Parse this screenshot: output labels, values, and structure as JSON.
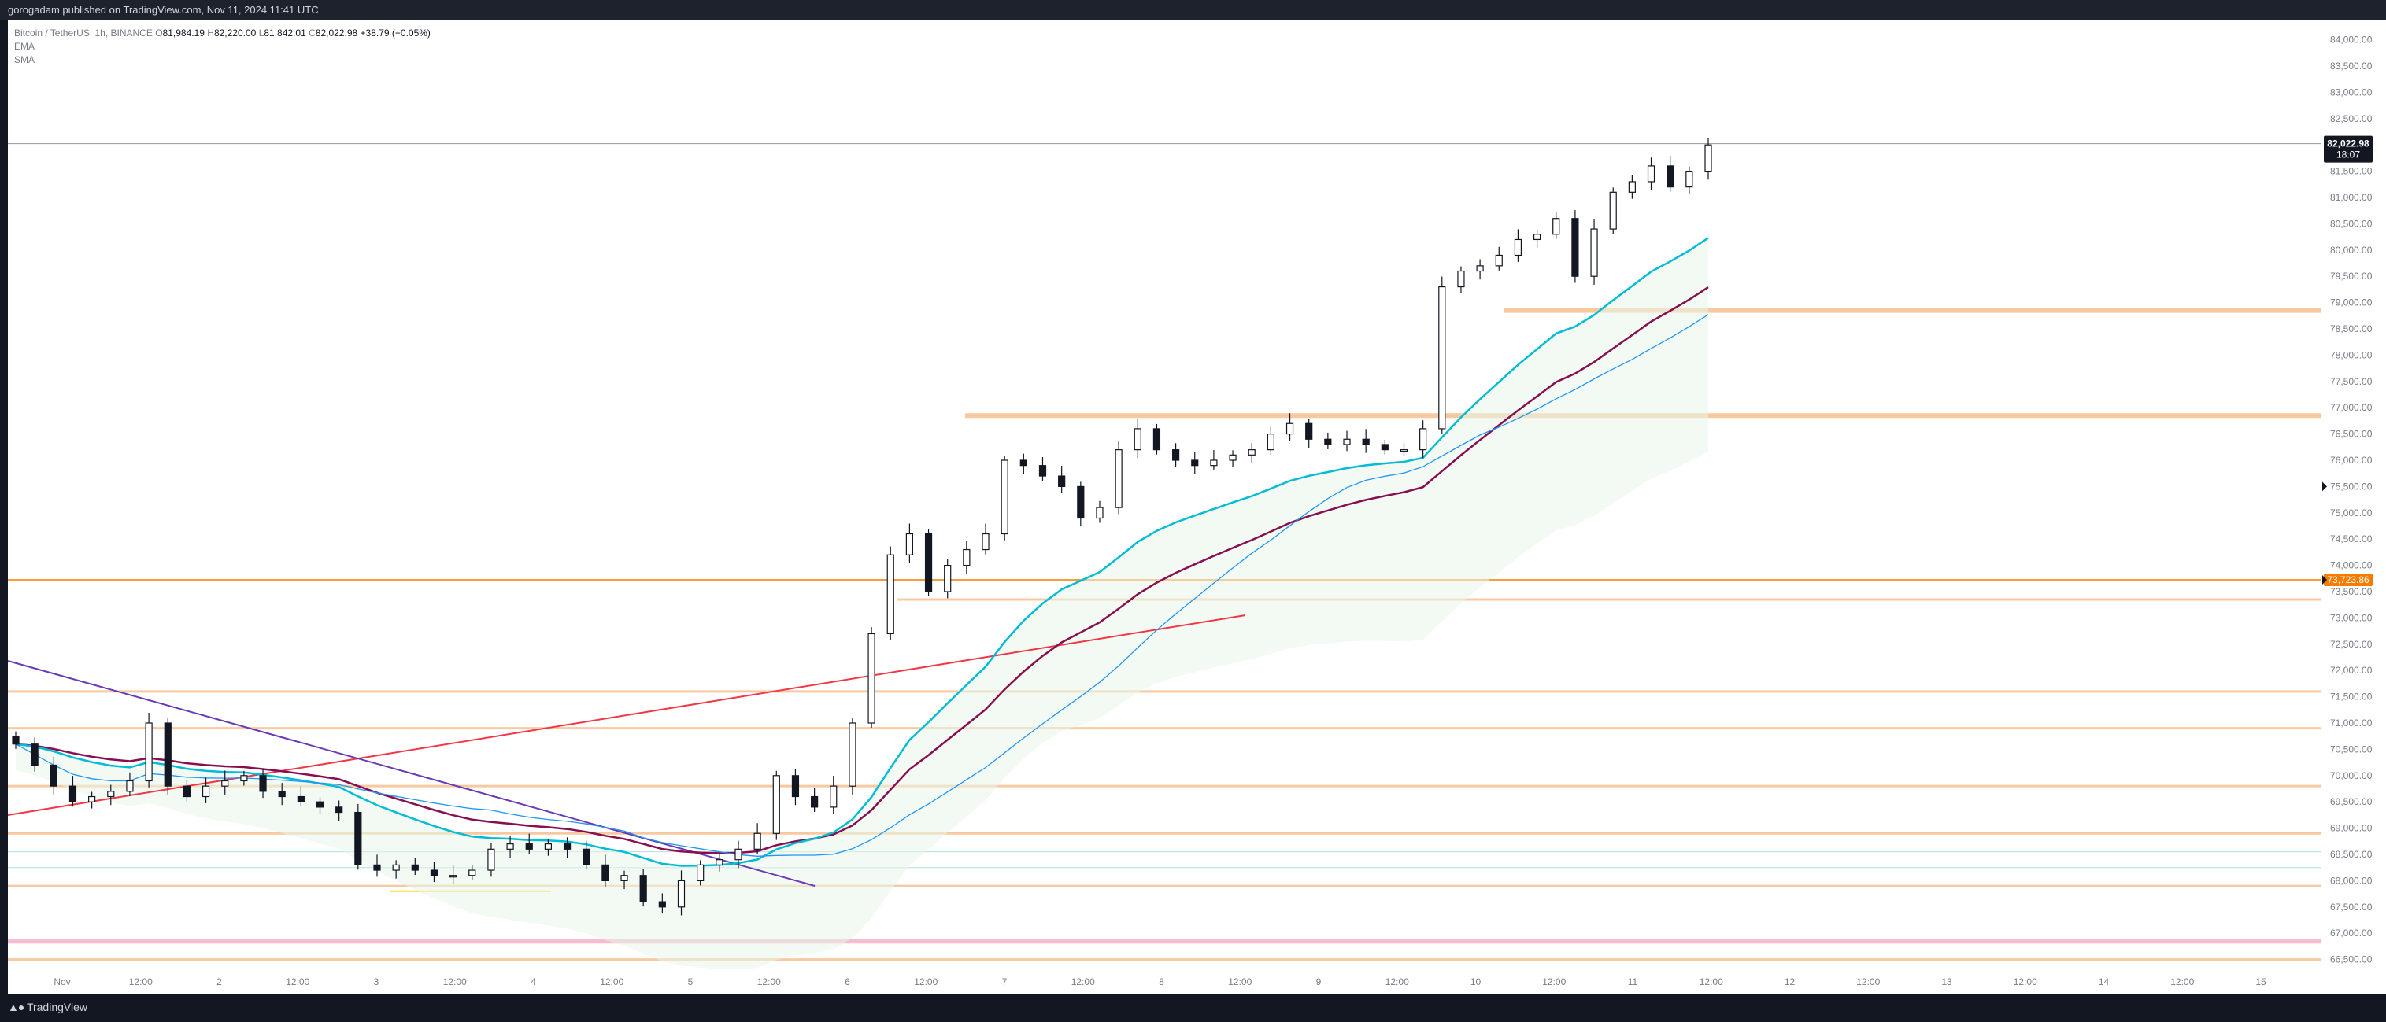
{
  "header": {
    "publisher": "gorogadam published on TradingView.com, Nov 11, 2024 11:41 UTC"
  },
  "legend": {
    "symbol": "Bitcoin / TetherUS, 1h, BINANCE",
    "open_label": "O",
    "open": "81,984.19",
    "high_label": "H",
    "high": "82,220.00",
    "low_label": "L",
    "low": "81,842.01",
    "close_label": "C",
    "close": "82,022.98",
    "change": "+38.79 (+0.05%)",
    "indicators": [
      "EMA",
      "SMA"
    ]
  },
  "price_axis": {
    "ticks": [
      "84,000.00",
      "83,500.00",
      "83,000.00",
      "82,500.00",
      "81,500.00",
      "81,000.00",
      "80,500.00",
      "80,000.00",
      "79,500.00",
      "79,000.00",
      "78,500.00",
      "78,000.00",
      "77,500.00",
      "77,000.00",
      "76,500.00",
      "76,000.00",
      "75,500.00",
      "75,000.00",
      "74,500.00",
      "74,000.00",
      "73,500.00",
      "73,000.00",
      "72,500.00",
      "72,000.00",
      "71,500.00",
      "71,000.00",
      "70,500.00",
      "70,000.00",
      "69,500.00",
      "69,000.00",
      "68,500.00",
      "68,000.00",
      "67,500.00",
      "67,000.00",
      "66,500.00"
    ],
    "current_price": "82,022.98",
    "countdown": "18:07",
    "alert_price": "73,723.86"
  },
  "time_axis": {
    "ticks": [
      "Nov",
      "12:00",
      "2",
      "12:00",
      "3",
      "12:00",
      "4",
      "12:00",
      "5",
      "12:00",
      "6",
      "12:00",
      "7",
      "12:00",
      "8",
      "12:00",
      "9",
      "12:00",
      "10",
      "12:00",
      "11",
      "12:00",
      "12",
      "12:00",
      "13",
      "12:00",
      "14",
      "12:00",
      "15"
    ]
  },
  "footer": {
    "brand": "TradingView"
  },
  "colors": {
    "background": "#ffffff",
    "frame": "#131722",
    "up_candle": "#ffffff",
    "down_candle": "#131722",
    "ema_fast": "#00bcd4",
    "ema_slow": "#880e4f",
    "sma": "#2196f3",
    "zone": "#f7c9a0",
    "alert": "#f57c00"
  },
  "chart_data": {
    "type": "candlestick",
    "symbol": "Bitcoin / TetherUS",
    "timeframe": "1h",
    "exchange": "BINANCE",
    "x_range": [
      "Nov 1",
      "Nov 15"
    ],
    "y_range": [
      66500,
      84000
    ],
    "last": {
      "open": 81984.19,
      "high": 82220.0,
      "low": 81842.01,
      "close": 82022.98
    },
    "horizontal_levels": [
      66500,
      66850,
      67900,
      68250,
      68550,
      68900,
      69800,
      70900,
      71600,
      73350,
      73723.86,
      76850,
      78850
    ],
    "closes_approx": [
      70600,
      70200,
      69800,
      69500,
      69600,
      69700,
      69900,
      71000,
      69800,
      69600,
      69800,
      69900,
      70000,
      69700,
      69600,
      69500,
      69400,
      69300,
      68300,
      68200,
      68300,
      68200,
      68100,
      68100,
      68200,
      68600,
      68700,
      68600,
      68700,
      68600,
      68300,
      68000,
      68100,
      67600,
      67500,
      68000,
      68300,
      68400,
      68600,
      68900,
      70000,
      69600,
      69400,
      69800,
      71000,
      72700,
      74200,
      74600,
      73500,
      74000,
      74300,
      74600,
      76000,
      75900,
      75700,
      75500,
      74900,
      75100,
      76200,
      76600,
      76200,
      76000,
      75900,
      76000,
      76100,
      76200,
      76500,
      76700,
      76400,
      76300,
      76400,
      76300,
      76200,
      76200,
      76600,
      79300,
      79600,
      79700,
      79900,
      80200,
      80300,
      80600,
      79500,
      80400,
      81100,
      81300,
      81600,
      81200,
      81500,
      82000
    ]
  }
}
